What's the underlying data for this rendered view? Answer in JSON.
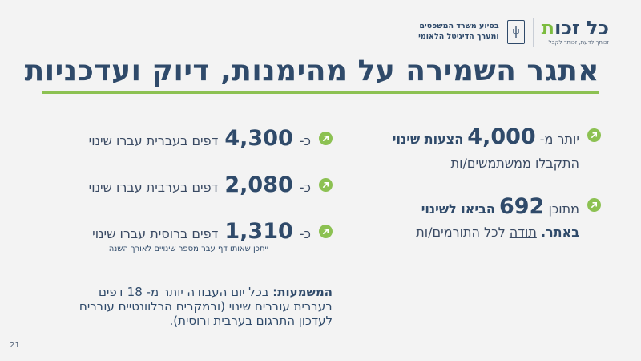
{
  "header": {
    "brand_main": "כל זכות",
    "brand_tagline": "זכותך לדעת, זכותך לקבל",
    "ministry_line1": "בסיוע משרד המשפטים",
    "ministry_line2": "ומערך הדיגיטל הלאומי"
  },
  "title": "אתגר השמירה על מהימנות, דיוק ועדכניות",
  "right_column": {
    "item1": {
      "prefix": "יותר מ-",
      "number": "4,000",
      "suffix": "הצעות שינוי",
      "line2": "התקבלו ממשתמשים/ות"
    },
    "item2": {
      "prefix": "מתוכן",
      "number": "692",
      "suffix": "הביאו לשינוי",
      "line2_bold": "באתר.",
      "line2_link": "תודה",
      "line2_rest": "לכל התורמים/ות"
    }
  },
  "left_column": {
    "items": [
      {
        "prefix": "כ-",
        "number": "4,300",
        "text": "דפים בעברית עברו שינוי"
      },
      {
        "prefix": "כ-",
        "number": "2,080",
        "text": "דפים בערבית עברו שינוי"
      },
      {
        "prefix": "כ-",
        "number": "1,310",
        "text": "דפים ברוסית עברו שינוי"
      }
    ],
    "note": "ייתכן שאותו דף עבר מספר שינויים לאורך השנה"
  },
  "meaning": {
    "label": "המשמעות:",
    "text": "בכל יום העבודה יותר מ- 18 דפים בעברית עוברים שינוי (ובמקרים הרלוונטיים עוברים לעדכון התרגום בערבית ורוסית)."
  },
  "page_number": "21",
  "colors": {
    "accent": "#8cc152",
    "navy": "#2f4a6a",
    "background": "#f3f3f3"
  }
}
